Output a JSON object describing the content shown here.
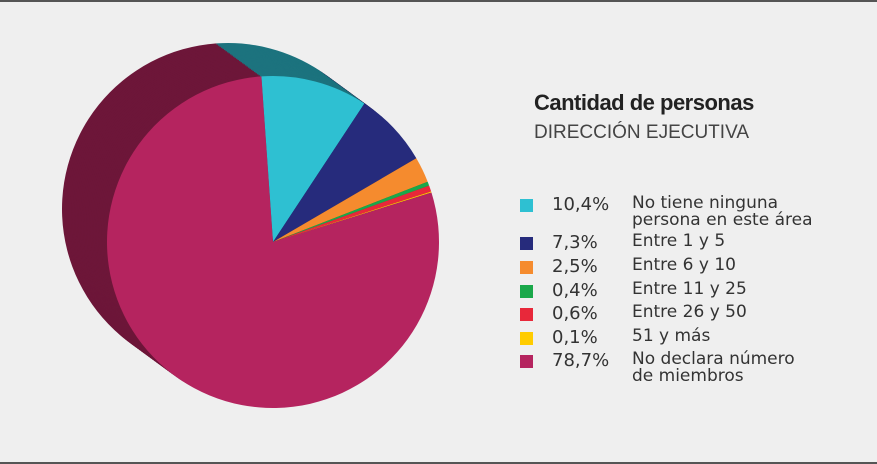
{
  "chart_data": {
    "type": "pie",
    "title": "Cantidad de personas",
    "subtitle": "DIRECCIÓN EJECUTIVA",
    "categories": [
      "No tiene ninguna\npersona en este área",
      "Entre 1 y 5",
      "Entre 6 y 10",
      "Entre 11 y 25",
      "Entre 26 y 50",
      "51 y más",
      "No declara número\nde miembros"
    ],
    "values": [
      10.4,
      7.3,
      2.5,
      0.4,
      0.6,
      0.1,
      78.7
    ],
    "value_labels": [
      "10,4%",
      "7,3%",
      "2,5%",
      "0,4%",
      "0,6%",
      "0,1%",
      "78,7%"
    ],
    "colors": [
      "#2ec0d2",
      "#262b7c",
      "#f58b2e",
      "#1aa84a",
      "#e8283a",
      "#ffcc00",
      "#b5245f"
    ]
  }
}
